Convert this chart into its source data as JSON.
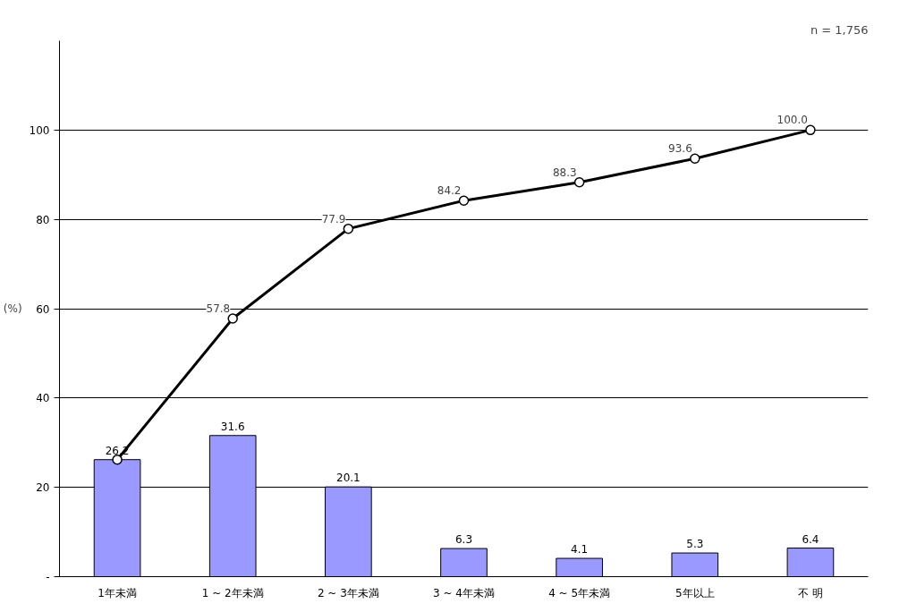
{
  "chart_data": {
    "type": "bar",
    "ylabel": "(%)",
    "annotations": [
      "n = 1,756"
    ],
    "categories": [
      "1年未満",
      "1 ~ 2年未満",
      "2 ~ 3年未満",
      "3 ~ 4年未満",
      "4 ~ 5年未満",
      "5年以上",
      "不 明"
    ],
    "series": [
      {
        "color": "#9999ff",
        "values": [
          26.2,
          31.6,
          20.1,
          6.3,
          4.1,
          5.3,
          6.4
        ],
        "value_labels": [
          "26.2",
          "31.6",
          "20.1",
          "6.3",
          "4.1",
          "5.3",
          "6.4"
        ]
      },
      {
        "type": "line",
        "color": "#000000",
        "marker": "circle",
        "line_style": "solid",
        "values": [
          26.2,
          57.8,
          77.9,
          84.2,
          88.3,
          93.6,
          100.0
        ],
        "value_labels": [
          null,
          "57.8",
          "77.9",
          "84.2",
          "88.3",
          "93.6",
          "100.0"
        ]
      }
    ],
    "ylim": [
      0,
      120
    ],
    "yticks": [
      {
        "value": 0,
        "label": "-"
      },
      20,
      40,
      60,
      80,
      100
    ],
    "grid": "y"
  }
}
